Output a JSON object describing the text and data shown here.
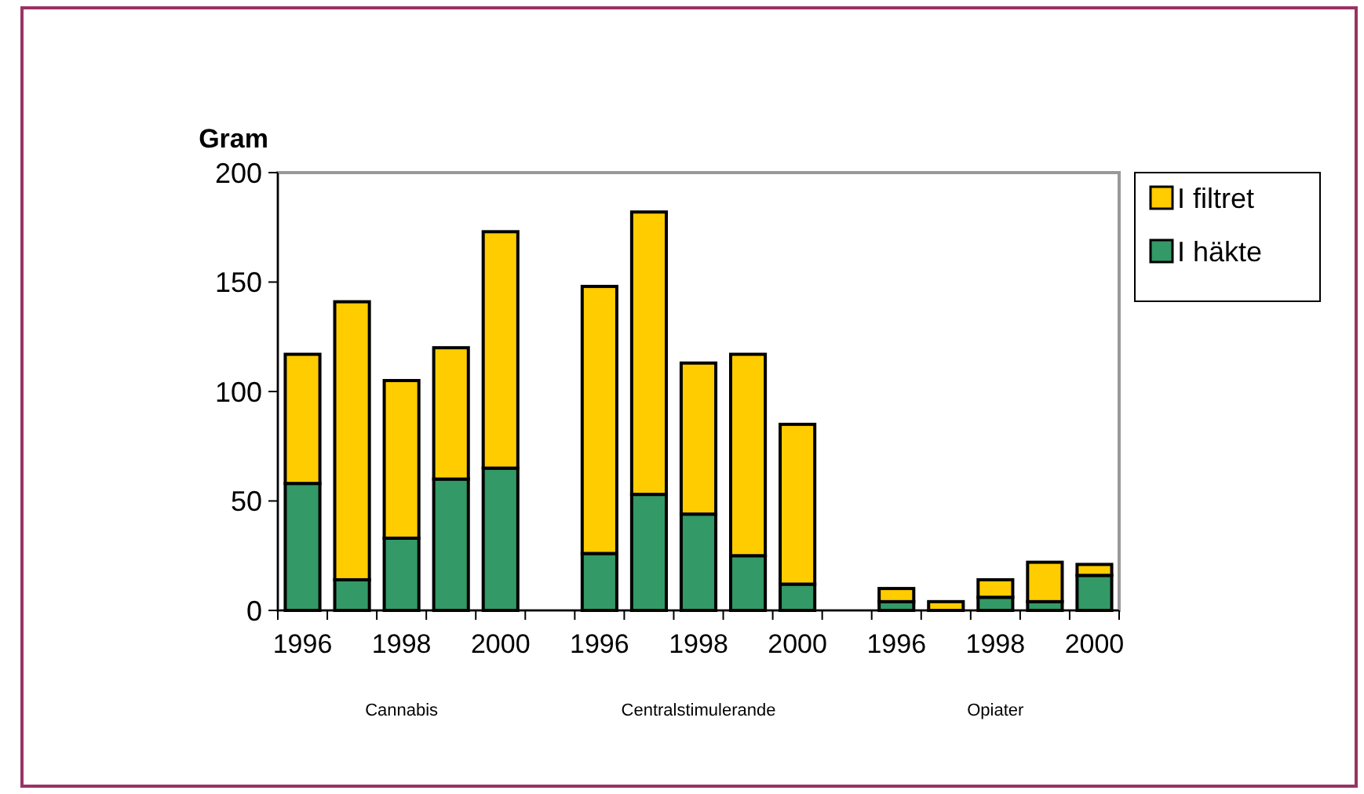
{
  "chart_data": {
    "type": "bar",
    "stacked": true,
    "ylabel": "Gram",
    "categories": [
      "1996",
      null,
      "1998",
      null,
      "2000",
      null,
      "1996",
      null,
      "1998",
      null,
      "2000",
      null,
      "1996",
      null,
      "1998",
      null,
      "2000"
    ],
    "series": [
      {
        "name": "I häkte",
        "color": "#339966",
        "values": [
          58,
          14,
          33,
          60,
          65,
          null,
          26,
          53,
          44,
          25,
          12,
          null,
          4,
          null,
          6,
          4,
          16
        ]
      },
      {
        "name": "I filtret",
        "color": "#ffcc00",
        "values": [
          59,
          127,
          72,
          60,
          108,
          null,
          122,
          129,
          69,
          92,
          73,
          null,
          6,
          4,
          8,
          18,
          5
        ]
      }
    ],
    "ylim": [
      0,
      200
    ],
    "yticks": [
      0,
      50,
      100,
      150,
      200
    ],
    "grid": false,
    "legend": "top right",
    "annotations": [
      "Cannabis",
      "Centralstimulerande",
      "Opiater"
    ]
  }
}
